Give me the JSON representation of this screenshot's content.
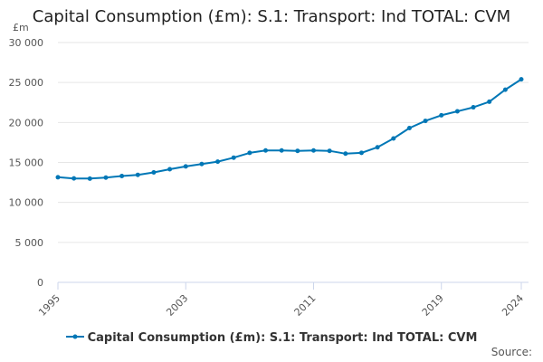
{
  "colors": {
    "series": "#0077b6",
    "grid": "#e6e6e6",
    "axis": "#ccd6eb"
  },
  "source_label": "Source:",
  "chart_data": {
    "type": "line",
    "title": "Capital Consumption (£m): S.1: Transport: Ind TOTAL: CVM",
    "xlabel": "",
    "ylabel": "£m",
    "ylim": [
      0,
      30000
    ],
    "yticks": [
      0,
      5000,
      10000,
      15000,
      20000,
      25000,
      30000
    ],
    "ytick_labels": [
      "0",
      "5 000",
      "10 000",
      "15 000",
      "20 000",
      "25 000",
      "30 000"
    ],
    "xlim": [
      1995,
      2024
    ],
    "xticks": [
      1995,
      2003,
      2011,
      2019,
      2024
    ],
    "xtick_labels": [
      "1995",
      "2003",
      "2011",
      "2019",
      "2024"
    ],
    "legend": "bottom-center",
    "grid": true,
    "x": [
      1995,
      1996,
      1997,
      1998,
      1999,
      2000,
      2001,
      2002,
      2003,
      2004,
      2005,
      2006,
      2007,
      2008,
      2009,
      2010,
      2011,
      2012,
      2013,
      2014,
      2015,
      2016,
      2017,
      2018,
      2019,
      2020,
      2021,
      2022,
      2023,
      2024
    ],
    "series": [
      {
        "name": "Capital Consumption (£m): S.1: Transport: Ind TOTAL: CVM",
        "values": [
          13150,
          13000,
          12980,
          13100,
          13300,
          13450,
          13750,
          14150,
          14500,
          14800,
          15100,
          15600,
          16200,
          16500,
          16500,
          16450,
          16500,
          16450,
          16100,
          16200,
          16900,
          18000,
          19300,
          20200,
          20900,
          21400,
          21900,
          22600,
          24100,
          25400
        ]
      }
    ]
  }
}
